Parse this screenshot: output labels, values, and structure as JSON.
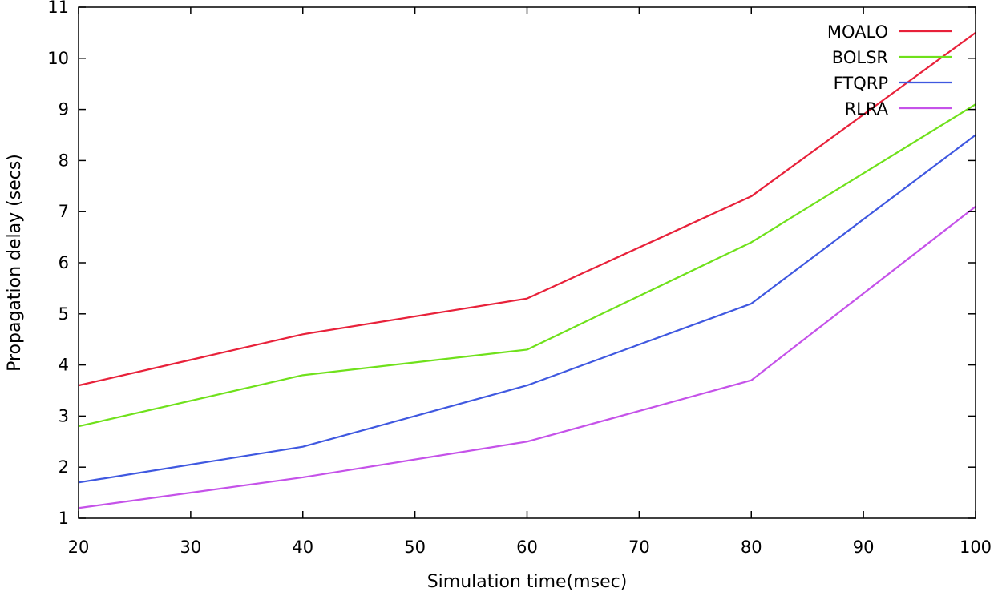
{
  "chart_data": {
    "type": "line",
    "title": "",
    "xlabel": "Simulation time(msec)",
    "ylabel": "Propagation delay (secs)",
    "xlim": [
      20,
      100
    ],
    "ylim": [
      1,
      11
    ],
    "xticks": [
      20,
      30,
      40,
      50,
      60,
      70,
      80,
      90,
      100
    ],
    "yticks": [
      1,
      2,
      3,
      4,
      5,
      6,
      7,
      8,
      9,
      10,
      11
    ],
    "grid": false,
    "legend_position": "top-right",
    "x": [
      20,
      40,
      60,
      80,
      100
    ],
    "series": [
      {
        "name": "MOALO",
        "color": "#e8213a",
        "values": [
          3.6,
          4.6,
          5.3,
          7.3,
          10.5
        ]
      },
      {
        "name": "BOLSR",
        "color": "#6fe11b",
        "values": [
          2.8,
          3.8,
          4.3,
          6.4,
          9.1
        ]
      },
      {
        "name": "FTQRP",
        "color": "#3f58e0",
        "values": [
          1.7,
          2.4,
          3.6,
          5.2,
          8.5
        ]
      },
      {
        "name": "RLRA",
        "color": "#c552e9",
        "values": [
          1.2,
          1.8,
          2.5,
          3.7,
          7.1
        ]
      }
    ]
  }
}
